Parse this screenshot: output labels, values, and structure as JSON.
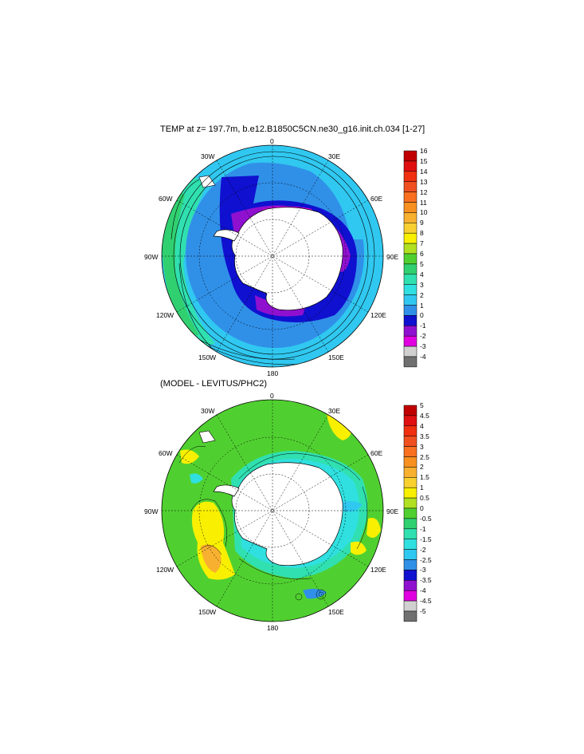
{
  "top_panel": {
    "title": "TEMP at z= 197.7m, b.e12.B1850C5CN.ne30_g16.init.ch.034 [1-27]",
    "lon_labels": {
      "0": "0",
      "30E": "30E",
      "60E": "60E",
      "90E": "90E",
      "120E": "120E",
      "150E": "150E",
      "180": "180",
      "150W": "150W",
      "120W": "120W",
      "90W": "90W",
      "60W": "60W",
      "30W": "30W"
    },
    "colorbar": {
      "labels": [
        "16",
        "15",
        "14",
        "13",
        "12",
        "11",
        "10",
        "9",
        "8",
        "7",
        "6",
        "5",
        "4",
        "3",
        "2",
        "1",
        "0",
        "-1",
        "-2",
        "-3",
        "-4"
      ],
      "colors": [
        "#c00000",
        "#e01010",
        "#f03010",
        "#f05020",
        "#f87020",
        "#f89020",
        "#f8b030",
        "#f8d030",
        "#f8f000",
        "#b0e020",
        "#50d030",
        "#30d070",
        "#30e0b0",
        "#30e0e0",
        "#30c8f0",
        "#3090e8",
        "#1010d0",
        "#9010d0",
        "#e000e0",
        "#d0d0d0",
        "#707070"
      ]
    }
  },
  "bottom_panel": {
    "title": "(MODEL - LEVITUS/PHC2)",
    "lon_labels": {
      "0": "0",
      "30E": "30E",
      "60E": "60E",
      "90E": "90E",
      "120E": "120E",
      "150E": "150E",
      "180": "180",
      "150W": "150W",
      "120W": "120W",
      "90W": "90W",
      "60W": "60W",
      "30W": "30W"
    },
    "colorbar": {
      "labels": [
        "5",
        "4.5",
        "4",
        "3.5",
        "3",
        "2.5",
        "2",
        "1.5",
        "1",
        "0.5",
        "0",
        "-0.5",
        "-1",
        "-1.5",
        "-2",
        "-2.5",
        "-3",
        "-3.5",
        "-4",
        "-4.5",
        "-5"
      ],
      "colors": [
        "#c00000",
        "#e01010",
        "#f03010",
        "#f05020",
        "#f87020",
        "#f89020",
        "#f8b030",
        "#f8d030",
        "#f8f000",
        "#b0e020",
        "#50d030",
        "#30d070",
        "#30e0b0",
        "#30e0e0",
        "#30c8f0",
        "#3090e8",
        "#1010d0",
        "#9010d0",
        "#e000e0",
        "#d0d0d0",
        "#707070"
      ]
    }
  }
}
